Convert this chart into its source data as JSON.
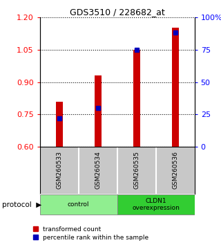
{
  "title": "GDS3510 / 228682_at",
  "samples": [
    "GSM260533",
    "GSM260534",
    "GSM260535",
    "GSM260536"
  ],
  "red_values": [
    0.81,
    0.93,
    1.05,
    1.15
  ],
  "blue_pct": [
    22,
    30,
    75,
    88
  ],
  "ylim_left": [
    0.6,
    1.2
  ],
  "ylim_right": [
    0,
    100
  ],
  "yticks_left": [
    0.6,
    0.75,
    0.9,
    1.05,
    1.2
  ],
  "yticks_right": [
    0,
    25,
    50,
    75,
    100
  ],
  "ytick_labels_right": [
    "0",
    "25",
    "50",
    "75",
    "100%"
  ],
  "groups": [
    {
      "label": "control",
      "samples": [
        0,
        1
      ],
      "color": "#90EE90"
    },
    {
      "label": "CLDN1\noverexpression",
      "samples": [
        2,
        3
      ],
      "color": "#32CD32"
    }
  ],
  "bar_color": "#CC0000",
  "blue_color": "#0000BB",
  "bar_width": 0.18,
  "baseline": 0.6,
  "sample_bg": "#C8C8C8",
  "panel_bg": "#FFFFFF"
}
